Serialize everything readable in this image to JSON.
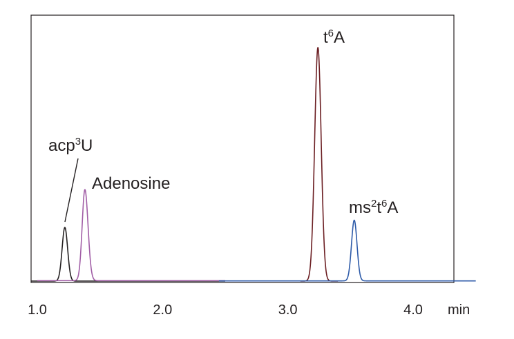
{
  "chart_data": {
    "type": "line",
    "title": "",
    "xlabel": "min",
    "ylabel": "",
    "xlim": [
      0.95,
      4.5
    ],
    "ylim": [
      0,
      100
    ],
    "x_ticks": [
      {
        "value": 1.0,
        "label": "1.0"
      },
      {
        "value": 2.0,
        "label": "2.0"
      },
      {
        "value": 3.0,
        "label": "3.0"
      },
      {
        "value": 4.0,
        "label": "4.0"
      }
    ],
    "grid": false,
    "legend": "none",
    "series": [
      {
        "name": "acp3U",
        "color": "#231f20",
        "range": [
          0.95,
          2.5
        ],
        "baseline": 0.3,
        "peak": {
          "center": 1.22,
          "height": 23,
          "width": 0.022
        }
      },
      {
        "name": "Adenosine",
        "color": "#a15ea6",
        "range": [
          1.0,
          2.5
        ],
        "baseline": 0.5,
        "peak": {
          "center": 1.38,
          "height": 39,
          "width": 0.022,
          "tail": 0.025
        }
      },
      {
        "name": "t6A",
        "color": "#6b1e22",
        "range": [
          3.1,
          3.4
        ],
        "baseline": 0.3,
        "peak": {
          "center": 3.24,
          "height": 100,
          "width": 0.026
        }
      },
      {
        "name": "ms2t6A",
        "color": "#2d5aa8",
        "range": [
          2.45,
          4.5
        ],
        "baseline": 0.4,
        "peak": {
          "center": 3.53,
          "height": 26,
          "width": 0.022
        }
      }
    ],
    "annotations": [
      {
        "id": "acp3U",
        "base": "acp",
        "sup": "3",
        "rest": "U"
      },
      {
        "id": "Adenosine",
        "base": "Adenosine",
        "sup": "",
        "rest": ""
      },
      {
        "id": "t6A",
        "base": "t",
        "sup": "6",
        "rest": "A"
      },
      {
        "id": "ms2t6A",
        "base": "ms",
        "sup": "2",
        "rest": "t",
        "sup2": "6",
        "rest2": "A"
      }
    ]
  }
}
